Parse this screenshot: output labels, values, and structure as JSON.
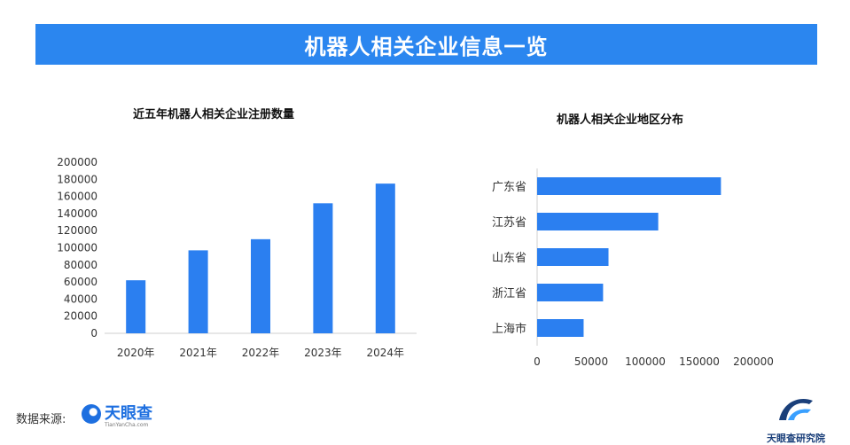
{
  "header": {
    "title": "机器人相关企业信息一览"
  },
  "footer": {
    "source_label": "数据来源:",
    "logo_name": "天眼查",
    "logo_url": "TianYanCha.com",
    "institute": "天眼查研究院"
  },
  "colors": {
    "accent": "#2b86ef",
    "bar": "#2b7ff0"
  },
  "chart_data": [
    {
      "type": "bar",
      "title": "近五年机器人相关企业注册数量",
      "categories": [
        "2020年",
        "2021年",
        "2022年",
        "2023年",
        "2024年"
      ],
      "values": [
        62000,
        97000,
        110000,
        152000,
        175000
      ],
      "yticks": [
        "0",
        "20000",
        "40000",
        "60000",
        "80000",
        "100000",
        "120000",
        "140000",
        "160000",
        "180000",
        "200000"
      ],
      "ylim": [
        0,
        200000
      ],
      "grid": false,
      "legend": "none"
    },
    {
      "type": "bar",
      "orientation": "horizontal",
      "title": "机器人相关企业地区分布",
      "categories": [
        "广东省",
        "江苏省",
        "山东省",
        "浙江省",
        "上海市"
      ],
      "values": [
        170000,
        112000,
        66000,
        61000,
        43000
      ],
      "xticks": [
        "0",
        "50000",
        "100000",
        "150000",
        "200000"
      ],
      "xlim": [
        0,
        200000
      ],
      "grid": false,
      "legend": "none"
    }
  ]
}
